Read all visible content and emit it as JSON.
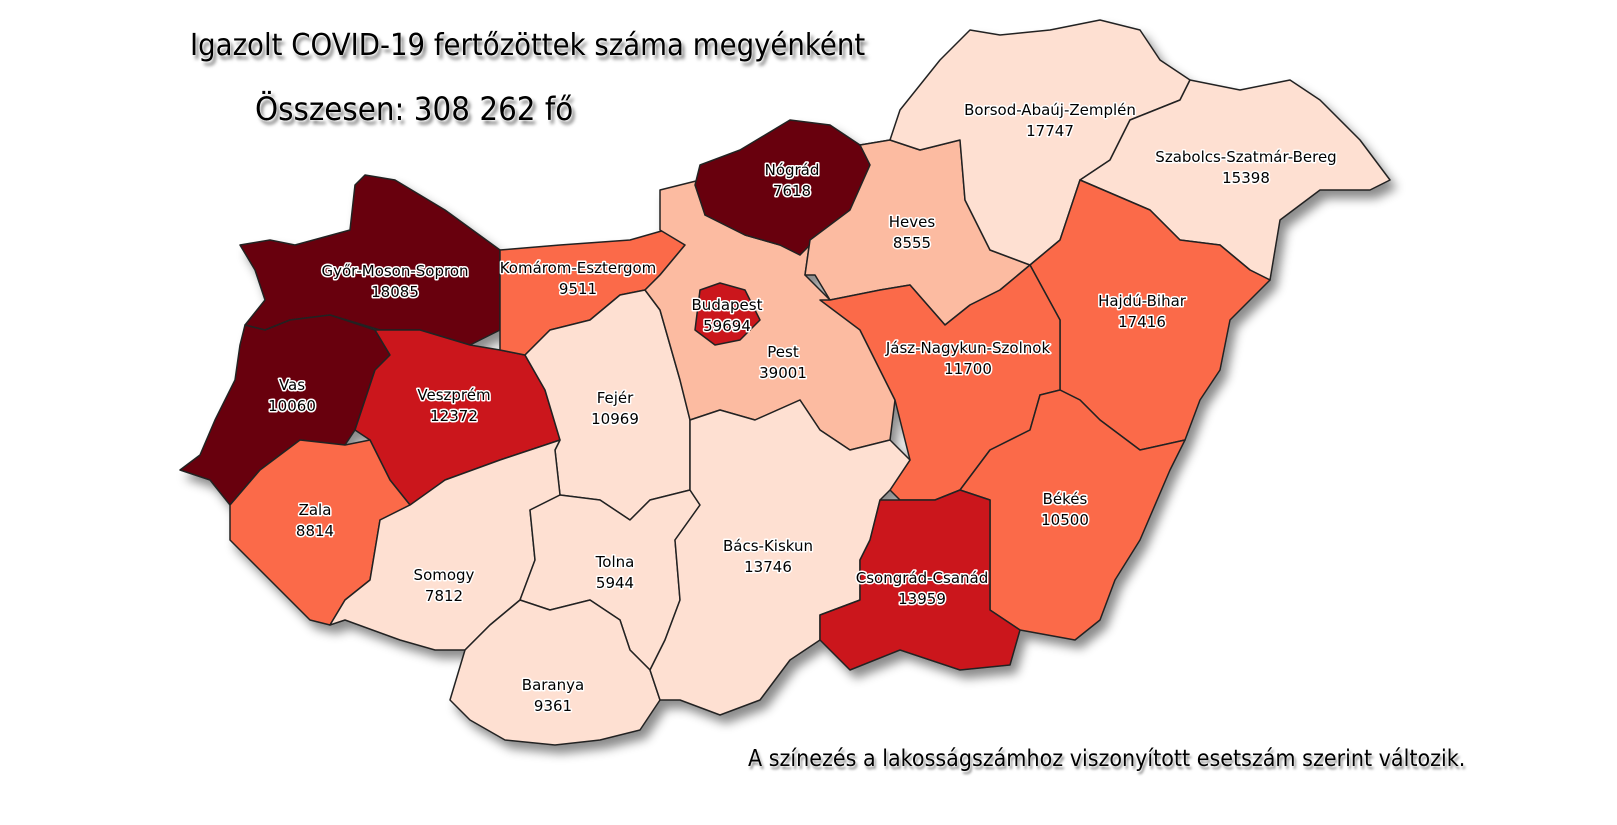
{
  "title": "Igazolt COVID-19 fertőzöttek száma megyénként",
  "total": "Összesen: 308 262 fő",
  "note": "A színezés a lakosságszámhoz viszonyított esetszám szerint változik.",
  "colors": {
    "darkest": "#67000d",
    "dark": "#cb181d",
    "medium": "#fb6a4a",
    "light": "#fcbba1",
    "lightest": "#fee0d2",
    "border": "#222222"
  },
  "counties": [
    {
      "id": "gyor",
      "name": "Győr-Moson-Sopron",
      "cases": "18085",
      "shade": "darkest"
    },
    {
      "id": "vas",
      "name": "Vas",
      "cases": "10060",
      "shade": "darkest"
    },
    {
      "id": "veszprem",
      "name": "Veszprém",
      "cases": "12372",
      "shade": "dark"
    },
    {
      "id": "zala",
      "name": "Zala",
      "cases": "8814",
      "shade": "medium"
    },
    {
      "id": "komarom",
      "name": "Komárom-Esztergom",
      "cases": "9511",
      "shade": "medium"
    },
    {
      "id": "fejer",
      "name": "Fejér",
      "cases": "10969",
      "shade": "lightest"
    },
    {
      "id": "somogy",
      "name": "Somogy",
      "cases": "7812",
      "shade": "lightest"
    },
    {
      "id": "tolna",
      "name": "Tolna",
      "cases": "5944",
      "shade": "lightest"
    },
    {
      "id": "baranya",
      "name": "Baranya",
      "cases": "9361",
      "shade": "lightest"
    },
    {
      "id": "pest",
      "name": "Pest",
      "cases": "39001",
      "shade": "light"
    },
    {
      "id": "budapest",
      "name": "Budapest",
      "cases": "59694",
      "shade": "dark"
    },
    {
      "id": "nograd",
      "name": "Nógrád",
      "cases": "7618",
      "shade": "darkest"
    },
    {
      "id": "heves",
      "name": "Heves",
      "cases": "8555",
      "shade": "light"
    },
    {
      "id": "borsod",
      "name": "Borsod-Abaúj-Zemplén",
      "cases": "17747",
      "shade": "lightest"
    },
    {
      "id": "szabolcs",
      "name": "Szabolcs-Szatmár-Bereg",
      "cases": "15398",
      "shade": "lightest"
    },
    {
      "id": "hajdu",
      "name": "Hajdú-Bihar",
      "cases": "17416",
      "shade": "medium"
    },
    {
      "id": "jnsz",
      "name": "Jász-Nagykun-Szolnok",
      "cases": "11700",
      "shade": "medium"
    },
    {
      "id": "bekes",
      "name": "Békés",
      "cases": "10500",
      "shade": "medium"
    },
    {
      "id": "csongrad",
      "name": "Csongrád-Csanád",
      "cases": "13959",
      "shade": "dark"
    },
    {
      "id": "bacs",
      "name": "Bács-Kiskun",
      "cases": "13746",
      "shade": "lightest"
    }
  ]
}
